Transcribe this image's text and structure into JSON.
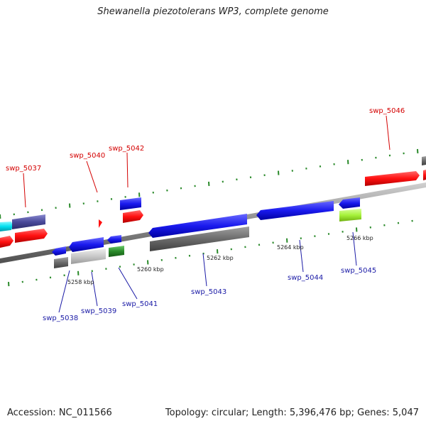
{
  "title": "Shewanella piezotolerans WP3, complete genome",
  "footer": {
    "accession": "Accession: NC_011566",
    "topology": "Topology: circular; Length: 5,396,476 bp; Genes: 5,047"
  },
  "scale_labels": [
    "5258 kbp",
    "5260 kbp",
    "5262 kbp",
    "5264 kbp",
    "5266 kbp"
  ],
  "gene_labels": {
    "swp_5037": "swp_5037",
    "swp_5038": "swp_5038",
    "swp_5039": "swp_5039",
    "swp_5040": "swp_5040",
    "swp_5041": "swp_5041",
    "swp_5042": "swp_5042",
    "swp_5043": "swp_5043",
    "swp_5044": "swp_5044",
    "swp_5045": "swp_5045",
    "swp_5046": "swp_5046"
  },
  "colors": {
    "forward_label": "#d40000",
    "reverse_label": "#1a1aa6",
    "red_gene": "#ff1010",
    "blue_gene": "#1a1aee",
    "gray_gene": "#6b6b6b",
    "light_gray_gene": "#c8c8c8",
    "green_gene": "#2a8a2a",
    "lime_gene": "#a6f23a",
    "cyan_gene": "#00e0f0",
    "slate_gene": "#4a4a9a",
    "tick_green": "#2a8a2a",
    "backbone": "#808080"
  }
}
